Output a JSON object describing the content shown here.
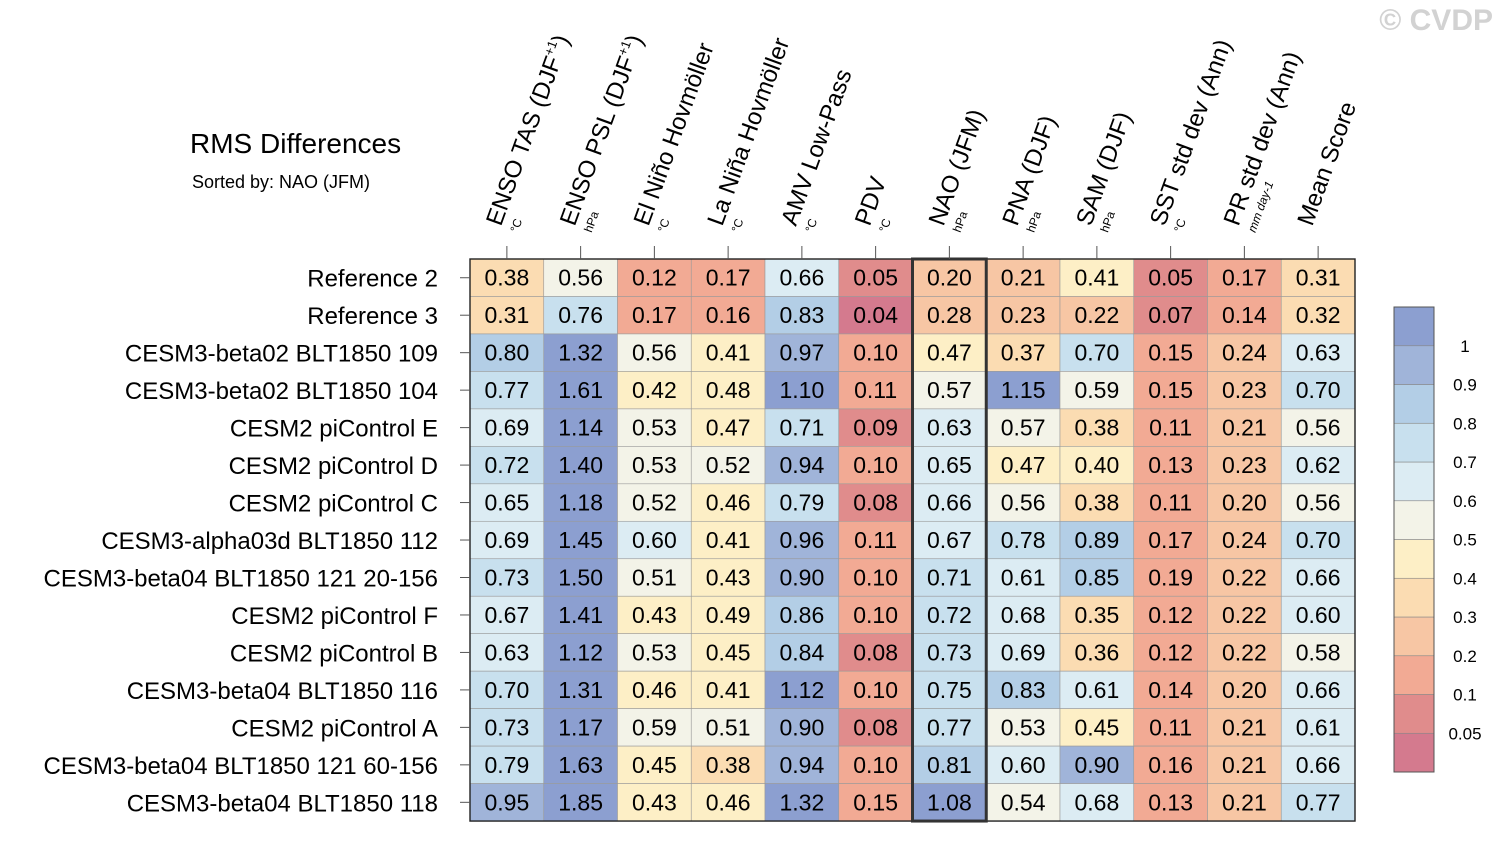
{
  "watermark": "© CVDP",
  "title": "RMS Differences",
  "subtitle": "Sorted by: NAO (JFM)",
  "chart_data": {
    "type": "heatmap",
    "title": "RMS Differences",
    "subtitle": "Sorted by: NAO (JFM)",
    "highlight_column": "NAO (JFM)",
    "columns": [
      {
        "label": "ENSO TAS (DJF",
        "sup": "+1",
        "close": ")",
        "unit": "°C"
      },
      {
        "label": "ENSO PSL (DJF",
        "sup": "+1",
        "close": ")",
        "unit": "hPa"
      },
      {
        "label": "El Niño Hovmöller",
        "sup": "",
        "close": "",
        "unit": "°C"
      },
      {
        "label": "La Niña Hovmöller",
        "sup": "",
        "close": "",
        "unit": "°C"
      },
      {
        "label": "AMV Low-Pass",
        "sup": "",
        "close": "",
        "unit": "°C"
      },
      {
        "label": "PDV",
        "sup": "",
        "close": "",
        "unit": "°C"
      },
      {
        "label": "NAO (JFM)",
        "sup": "",
        "close": "",
        "unit": "hPa"
      },
      {
        "label": "PNA (DJF)",
        "sup": "",
        "close": "",
        "unit": "hPa"
      },
      {
        "label": "SAM (DJF)",
        "sup": "",
        "close": "",
        "unit": "hPa"
      },
      {
        "label": "SST std dev (Ann)",
        "sup": "",
        "close": "",
        "unit": "°C"
      },
      {
        "label": "PR std dev (Ann)",
        "sup": "",
        "close": "",
        "unit": "mm day-1"
      },
      {
        "label": "Mean Score",
        "sup": "",
        "close": "",
        "unit": ""
      }
    ],
    "rows": [
      {
        "name": "Reference 2",
        "values": [
          0.38,
          0.56,
          0.12,
          0.17,
          0.66,
          0.05,
          0.2,
          0.21,
          0.41,
          0.05,
          0.17,
          0.31
        ]
      },
      {
        "name": "Reference 3",
        "values": [
          0.31,
          0.76,
          0.17,
          0.16,
          0.83,
          0.04,
          0.28,
          0.23,
          0.22,
          0.07,
          0.14,
          0.32
        ]
      },
      {
        "name": "CESM3-beta02 BLT1850 109",
        "values": [
          0.8,
          1.32,
          0.56,
          0.41,
          0.97,
          0.1,
          0.47,
          0.37,
          0.7,
          0.15,
          0.24,
          0.63
        ]
      },
      {
        "name": "CESM3-beta02 BLT1850 104",
        "values": [
          0.77,
          1.61,
          0.42,
          0.48,
          1.1,
          0.11,
          0.57,
          1.15,
          0.59,
          0.15,
          0.23,
          0.7
        ]
      },
      {
        "name": "CESM2 piControl E",
        "values": [
          0.69,
          1.14,
          0.53,
          0.47,
          0.71,
          0.09,
          0.63,
          0.57,
          0.38,
          0.11,
          0.21,
          0.56
        ]
      },
      {
        "name": "CESM2 piControl D",
        "values": [
          0.72,
          1.4,
          0.53,
          0.52,
          0.94,
          0.1,
          0.65,
          0.47,
          0.4,
          0.13,
          0.23,
          0.62
        ]
      },
      {
        "name": "CESM2 piControl C",
        "values": [
          0.65,
          1.18,
          0.52,
          0.46,
          0.79,
          0.08,
          0.66,
          0.56,
          0.38,
          0.11,
          0.2,
          0.56
        ]
      },
      {
        "name": "CESM3-alpha03d BLT1850 112",
        "values": [
          0.69,
          1.45,
          0.6,
          0.41,
          0.96,
          0.11,
          0.67,
          0.78,
          0.89,
          0.17,
          0.24,
          0.7
        ]
      },
      {
        "name": "CESM3-beta04 BLT1850 121 20-156",
        "values": [
          0.73,
          1.5,
          0.51,
          0.43,
          0.9,
          0.1,
          0.71,
          0.61,
          0.85,
          0.19,
          0.22,
          0.66
        ]
      },
      {
        "name": "CESM2 piControl F",
        "values": [
          0.67,
          1.41,
          0.43,
          0.49,
          0.86,
          0.1,
          0.72,
          0.68,
          0.35,
          0.12,
          0.22,
          0.6
        ]
      },
      {
        "name": "CESM2 piControl B",
        "values": [
          0.63,
          1.12,
          0.53,
          0.45,
          0.84,
          0.08,
          0.73,
          0.69,
          0.36,
          0.12,
          0.22,
          0.58
        ]
      },
      {
        "name": "CESM3-beta04 BLT1850 116",
        "values": [
          0.7,
          1.31,
          0.46,
          0.41,
          1.12,
          0.1,
          0.75,
          0.83,
          0.61,
          0.14,
          0.2,
          0.66
        ]
      },
      {
        "name": "CESM2 piControl A",
        "values": [
          0.73,
          1.17,
          0.59,
          0.51,
          0.9,
          0.08,
          0.77,
          0.53,
          0.45,
          0.11,
          0.21,
          0.61
        ]
      },
      {
        "name": "CESM3-beta04 BLT1850 121 60-156",
        "values": [
          0.79,
          1.63,
          0.45,
          0.38,
          0.94,
          0.1,
          0.81,
          0.6,
          0.9,
          0.16,
          0.21,
          0.66
        ]
      },
      {
        "name": "CESM3-beta04 BLT1850 118",
        "values": [
          0.95,
          1.85,
          0.43,
          0.46,
          1.32,
          0.15,
          1.08,
          0.54,
          0.68,
          0.13,
          0.21,
          0.77
        ]
      }
    ],
    "colorbar": {
      "levels": [
        0.05,
        0.1,
        0.2,
        0.3,
        0.4,
        0.5,
        0.6,
        0.7,
        0.8,
        0.9,
        1
      ],
      "labels": [
        "0.05",
        "0.1",
        "0.2",
        "0.3",
        "0.4",
        "0.5",
        "0.6",
        "0.7",
        "0.8",
        "0.9",
        "1"
      ],
      "colors": [
        "#d47a8e",
        "#e08c8c",
        "#f2aa94",
        "#f7c6a4",
        "#fbdcb2",
        "#fdefc6",
        "#f3f3e8",
        "#dcecf3",
        "#c8e0ee",
        "#b3cee6",
        "#a0b4d9",
        "#8c9fd0"
      ]
    }
  }
}
